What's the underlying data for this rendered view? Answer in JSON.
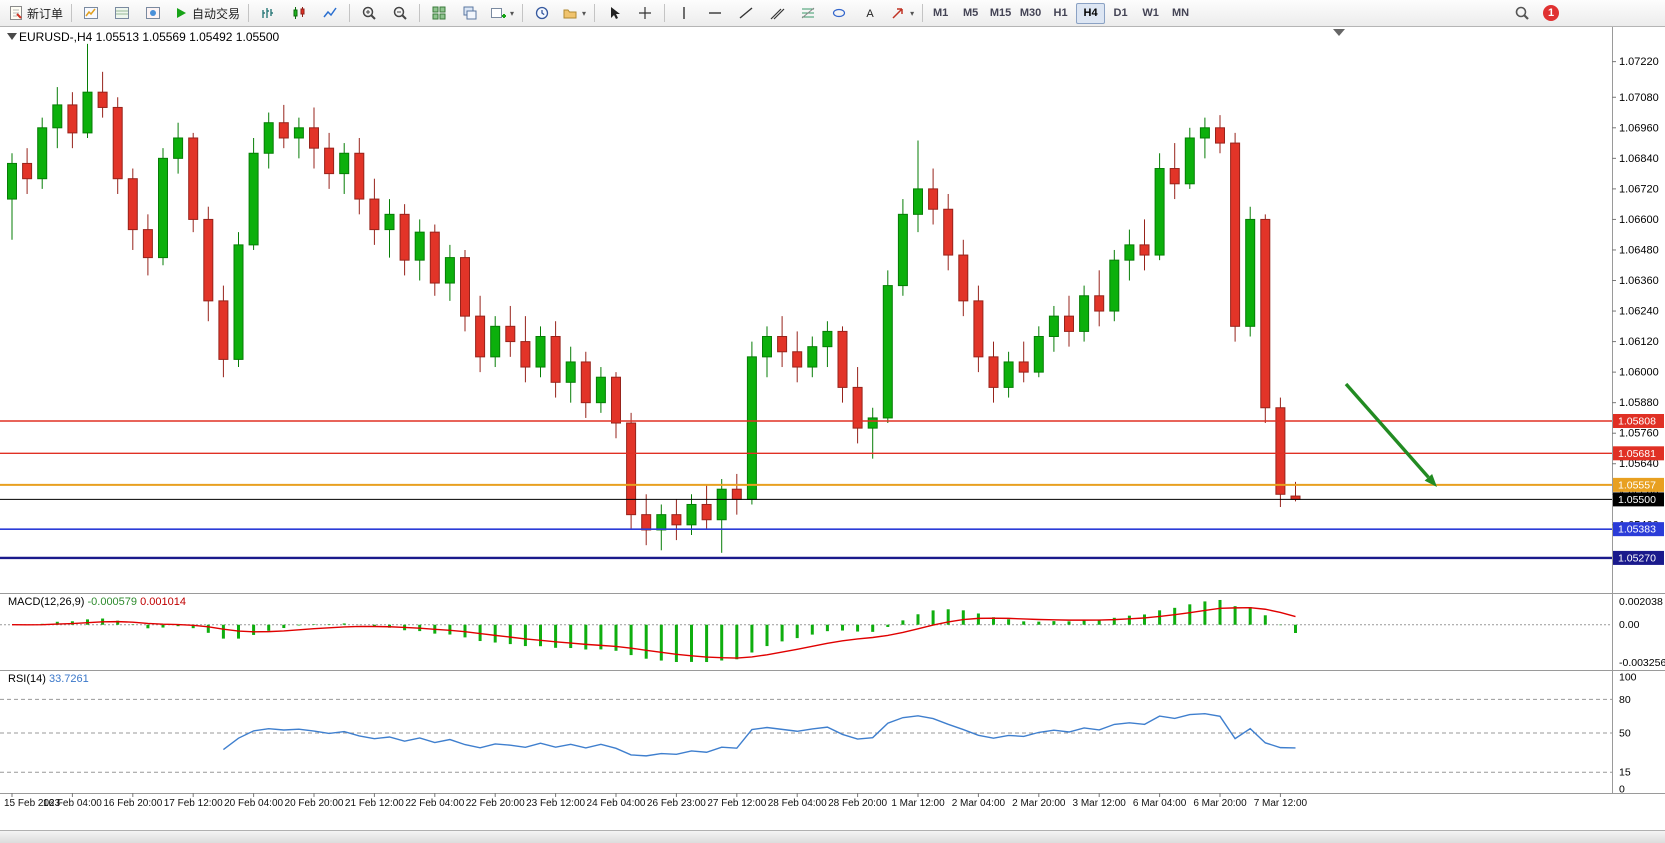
{
  "toolbar": {
    "items": [
      {
        "name": "new-order",
        "icon": "new-order",
        "label": "新订单"
      },
      {
        "sep": true
      },
      {
        "name": "market-watch",
        "icon": "market-watch"
      },
      {
        "name": "data-window",
        "icon": "data-window"
      },
      {
        "name": "navigator",
        "icon": "navigator"
      },
      {
        "name": "auto-trading",
        "icon": "play",
        "label": "自动交易"
      },
      {
        "sep": true
      },
      {
        "name": "bar-chart",
        "icon": "bars"
      },
      {
        "name": "candlestick-chart",
        "icon": "candles"
      },
      {
        "name": "line-chart",
        "icon": "line"
      },
      {
        "sep": true
      },
      {
        "name": "zoom-in",
        "icon": "zoom-in"
      },
      {
        "name": "zoom-out",
        "icon": "zoom-out"
      },
      {
        "sep": true
      },
      {
        "name": "tile-windows",
        "icon": "tile"
      },
      {
        "name": "cascade-windows",
        "icon": "cascade"
      },
      {
        "name": "new-chart",
        "icon": "new-chart",
        "dropdown": true
      },
      {
        "sep": true
      },
      {
        "name": "period-clock",
        "icon": "clock"
      },
      {
        "name": "templates",
        "icon": "templates",
        "dropdown": true
      },
      {
        "sep": true
      },
      {
        "name": "cursor",
        "icon": "cursor"
      },
      {
        "name": "crosshair",
        "icon": "crosshair"
      },
      {
        "sep": true
      },
      {
        "name": "vertical-line",
        "icon": "vline"
      },
      {
        "name": "horizontal-line",
        "icon": "hline"
      },
      {
        "name": "trendline",
        "icon": "trend"
      },
      {
        "name": "equidistant-channel",
        "icon": "channel"
      },
      {
        "name": "fibonacci",
        "icon": "fibo"
      },
      {
        "name": "shapes",
        "icon": "shapes"
      },
      {
        "name": "text-label",
        "icon": "text"
      },
      {
        "name": "arrows",
        "icon": "arrow",
        "dropdown": true
      },
      {
        "sep": true
      }
    ],
    "timeframes": [
      "M1",
      "M5",
      "M15",
      "M30",
      "H1",
      "H4",
      "D1",
      "W1",
      "MN"
    ],
    "active_timeframe": "H4",
    "notification_count": "1"
  },
  "chart": {
    "title": "EURUSD-,H4 1.05513 1.05569 1.05492 1.05500"
  },
  "colors": {
    "bull": "#0cb00c",
    "bull_border": "#067d06",
    "bear": "#e23428",
    "bear_border": "#97231b",
    "macd_bar": "#0fae0f",
    "macd_signal": "#e00000",
    "rsi_line": "#3f7fce"
  },
  "chart_data": {
    "type": "candlestick",
    "symbol": "EURUSD-",
    "timeframe": "H4",
    "current_ohlc": {
      "open": 1.05513,
      "high": 1.05569,
      "low": 1.05492,
      "close": 1.055
    },
    "ylim": [
      1.0514,
      1.07305
    ],
    "candles": [
      [
        1.0668,
        1.0686,
        1.0652,
        1.0682
      ],
      [
        1.0682,
        1.0688,
        1.067,
        1.0676
      ],
      [
        1.0676,
        1.07,
        1.0672,
        1.0696
      ],
      [
        1.0696,
        1.0712,
        1.0688,
        1.0705
      ],
      [
        1.0705,
        1.071,
        1.0688,
        1.0694
      ],
      [
        1.0694,
        1.0729,
        1.0692,
        1.071
      ],
      [
        1.071,
        1.0718,
        1.07,
        1.0704
      ],
      [
        1.0704,
        1.0708,
        1.067,
        1.0676
      ],
      [
        1.0676,
        1.068,
        1.0648,
        1.0656
      ],
      [
        1.0656,
        1.0662,
        1.0638,
        1.0645
      ],
      [
        1.0645,
        1.0688,
        1.0642,
        1.0684
      ],
      [
        1.0684,
        1.0698,
        1.0678,
        1.0692
      ],
      [
        1.0692,
        1.0694,
        1.0655,
        1.066
      ],
      [
        1.066,
        1.0665,
        1.062,
        1.0628
      ],
      [
        1.0628,
        1.0634,
        1.0598,
        1.0605
      ],
      [
        1.0605,
        1.0655,
        1.0602,
        1.065
      ],
      [
        1.065,
        1.0692,
        1.0648,
        1.0686
      ],
      [
        1.0686,
        1.0702,
        1.068,
        1.0698
      ],
      [
        1.0698,
        1.0705,
        1.0688,
        1.0692
      ],
      [
        1.0692,
        1.07,
        1.0684,
        1.0696
      ],
      [
        1.0696,
        1.0704,
        1.068,
        1.0688
      ],
      [
        1.0688,
        1.0694,
        1.0672,
        1.0678
      ],
      [
        1.0678,
        1.069,
        1.067,
        1.0686
      ],
      [
        1.0686,
        1.0692,
        1.0662,
        1.0668
      ],
      [
        1.0668,
        1.0676,
        1.065,
        1.0656
      ],
      [
        1.0656,
        1.0668,
        1.0645,
        1.0662
      ],
      [
        1.0662,
        1.0666,
        1.0638,
        1.0644
      ],
      [
        1.0644,
        1.066,
        1.0636,
        1.0655
      ],
      [
        1.0655,
        1.0658,
        1.063,
        1.0635
      ],
      [
        1.0635,
        1.065,
        1.0628,
        1.0645
      ],
      [
        1.0645,
        1.0648,
        1.0616,
        1.0622
      ],
      [
        1.0622,
        1.063,
        1.06,
        1.0606
      ],
      [
        1.0606,
        1.0622,
        1.0602,
        1.0618
      ],
      [
        1.0618,
        1.0626,
        1.0606,
        1.0612
      ],
      [
        1.0612,
        1.0622,
        1.0596,
        1.0602
      ],
      [
        1.0602,
        1.0618,
        1.0598,
        1.0614
      ],
      [
        1.0614,
        1.062,
        1.059,
        1.0596
      ],
      [
        1.0596,
        1.061,
        1.0588,
        1.0604
      ],
      [
        1.0604,
        1.0608,
        1.0582,
        1.0588
      ],
      [
        1.0588,
        1.0602,
        1.0584,
        1.0598
      ],
      [
        1.0598,
        1.06,
        1.0574,
        1.058
      ],
      [
        1.058,
        1.0584,
        1.0538,
        1.0544
      ],
      [
        1.0544,
        1.0552,
        1.0532,
        1.0538
      ],
      [
        1.0538,
        1.0548,
        1.053,
        1.0544
      ],
      [
        1.0544,
        1.055,
        1.0534,
        1.054
      ],
      [
        1.054,
        1.0552,
        1.0536,
        1.0548
      ],
      [
        1.0548,
        1.0556,
        1.0538,
        1.0542
      ],
      [
        1.0542,
        1.0558,
        1.0529,
        1.0554
      ],
      [
        1.0554,
        1.056,
        1.0544,
        1.055
      ],
      [
        1.055,
        1.0612,
        1.0548,
        1.0606
      ],
      [
        1.0606,
        1.0618,
        1.0598,
        1.0614
      ],
      [
        1.0614,
        1.0622,
        1.0602,
        1.0608
      ],
      [
        1.0608,
        1.0616,
        1.0596,
        1.0602
      ],
      [
        1.0602,
        1.0614,
        1.0598,
        1.061
      ],
      [
        1.061,
        1.062,
        1.0602,
        1.0616
      ],
      [
        1.0616,
        1.0618,
        1.0588,
        1.0594
      ],
      [
        1.0594,
        1.0602,
        1.0572,
        1.0578
      ],
      [
        1.0578,
        1.0586,
        1.0566,
        1.0582
      ],
      [
        1.0582,
        1.064,
        1.058,
        1.0634
      ],
      [
        1.0634,
        1.0668,
        1.063,
        1.0662
      ],
      [
        1.0662,
        1.0691,
        1.0655,
        1.0672
      ],
      [
        1.0672,
        1.068,
        1.0658,
        1.0664
      ],
      [
        1.0664,
        1.067,
        1.064,
        1.0646
      ],
      [
        1.0646,
        1.0652,
        1.0622,
        1.0628
      ],
      [
        1.0628,
        1.0634,
        1.06,
        1.0606
      ],
      [
        1.0606,
        1.0612,
        1.0588,
        1.0594
      ],
      [
        1.0594,
        1.0608,
        1.059,
        1.0604
      ],
      [
        1.0604,
        1.0612,
        1.0596,
        1.06
      ],
      [
        1.06,
        1.0618,
        1.0598,
        1.0614
      ],
      [
        1.0614,
        1.0626,
        1.0608,
        1.0622
      ],
      [
        1.0622,
        1.063,
        1.061,
        1.0616
      ],
      [
        1.0616,
        1.0634,
        1.0612,
        1.063
      ],
      [
        1.063,
        1.064,
        1.0618,
        1.0624
      ],
      [
        1.0624,
        1.0648,
        1.062,
        1.0644
      ],
      [
        1.0644,
        1.0656,
        1.0636,
        1.065
      ],
      [
        1.065,
        1.066,
        1.064,
        1.0646
      ],
      [
        1.0646,
        1.0686,
        1.0644,
        1.068
      ],
      [
        1.068,
        1.069,
        1.0668,
        1.0674
      ],
      [
        1.0674,
        1.0696,
        1.0672,
        1.0692
      ],
      [
        1.0692,
        1.07,
        1.0684,
        1.0696
      ],
      [
        1.0696,
        1.0701,
        1.0686,
        1.069
      ],
      [
        1.069,
        1.0694,
        1.0612,
        1.0618
      ],
      [
        1.0618,
        1.0665,
        1.0614,
        1.066
      ],
      [
        1.066,
        1.0662,
        1.058,
        1.0586
      ],
      [
        1.0586,
        1.059,
        1.0547,
        1.0552
      ],
      [
        1.05513,
        1.05569,
        1.05492,
        1.055
      ]
    ],
    "time_labels": [
      "15 Feb 2023",
      "16 Feb 04:00",
      "16 Feb 20:00",
      "17 Feb 12:00",
      "20 Feb 04:00",
      "20 Feb 20:00",
      "21 Feb 12:00",
      "22 Feb 04:00",
      "22 Feb 20:00",
      "23 Feb 12:00",
      "24 Feb 04:00",
      "26 Feb 23:00",
      "27 Feb 12:00",
      "28 Feb 04:00",
      "28 Feb 20:00",
      "1 Mar 12:00",
      "2 Mar 04:00",
      "2 Mar 20:00",
      "3 Mar 12:00",
      "6 Mar 04:00",
      "6 Mar 20:00",
      "7 Mar 12:00"
    ],
    "label_step": 4,
    "price_ticks": [
      {
        "label": "1.07220",
        "value": 1.0722
      },
      {
        "label": "1.07080",
        "value": 1.0708
      },
      {
        "label": "1.06960",
        "value": 1.0696
      },
      {
        "label": "1.06840",
        "value": 1.0684
      },
      {
        "label": "1.06720",
        "value": 1.0672
      },
      {
        "label": "1.06600",
        "value": 1.066
      },
      {
        "label": "1.06480",
        "value": 1.0648
      },
      {
        "label": "1.06360",
        "value": 1.0636
      },
      {
        "label": "1.06240",
        "value": 1.0624
      },
      {
        "label": "1.06120",
        "value": 1.0612
      },
      {
        "label": "1.06000",
        "value": 1.06
      },
      {
        "label": "1.05880",
        "value": 1.0588
      },
      {
        "label": "1.05760",
        "value": 1.0576
      },
      {
        "label": "1.05640",
        "value": 1.0564
      },
      {
        "label": "1.05520",
        "value": 1.0552
      },
      {
        "label": "1.05400",
        "value": 1.054
      }
    ],
    "levels": [
      {
        "price": 1.05808,
        "label": "1.05808",
        "color": "#e03024",
        "width": 1.4
      },
      {
        "price": 1.05681,
        "label": "1.05681",
        "color": "#e03024",
        "width": 1.4
      },
      {
        "price": 1.05557,
        "label": "1.05557",
        "color": "#e8a020",
        "width": 2
      },
      {
        "price": 1.055,
        "label": "1.05500",
        "color": "#000000",
        "width": 1,
        "role": "bid"
      },
      {
        "price": 1.05383,
        "label": "1.05383",
        "color": "#2b3cd8",
        "width": 1.6
      },
      {
        "price": 1.0527,
        "label": "1.05270",
        "color": "#1a1a8c",
        "width": 2.4
      }
    ],
    "indicators": [
      {
        "type": "MACD",
        "params": [
          12,
          26,
          9
        ],
        "name": "MACD(12,26,9)",
        "value1": "-0.000579",
        "value2": "0.001014",
        "axis": {
          "max": "0.002038",
          "zero": "0.00",
          "min": "-0.003256"
        }
      },
      {
        "type": "RSI",
        "params": [
          14
        ],
        "name": "RSI(14)",
        "value": "33.7261",
        "levels": [
          80,
          50,
          15
        ],
        "axis_labels": [
          {
            "label": "100",
            "value": 100
          },
          {
            "label": "80",
            "value": 80
          },
          {
            "label": "50",
            "value": 50
          },
          {
            "label": "15",
            "value": 15
          },
          {
            "label": "0",
            "value": 0
          }
        ]
      }
    ],
    "annotations": [
      {
        "type": "arrow",
        "direction": "down-right",
        "color": "#228B22"
      }
    ]
  }
}
